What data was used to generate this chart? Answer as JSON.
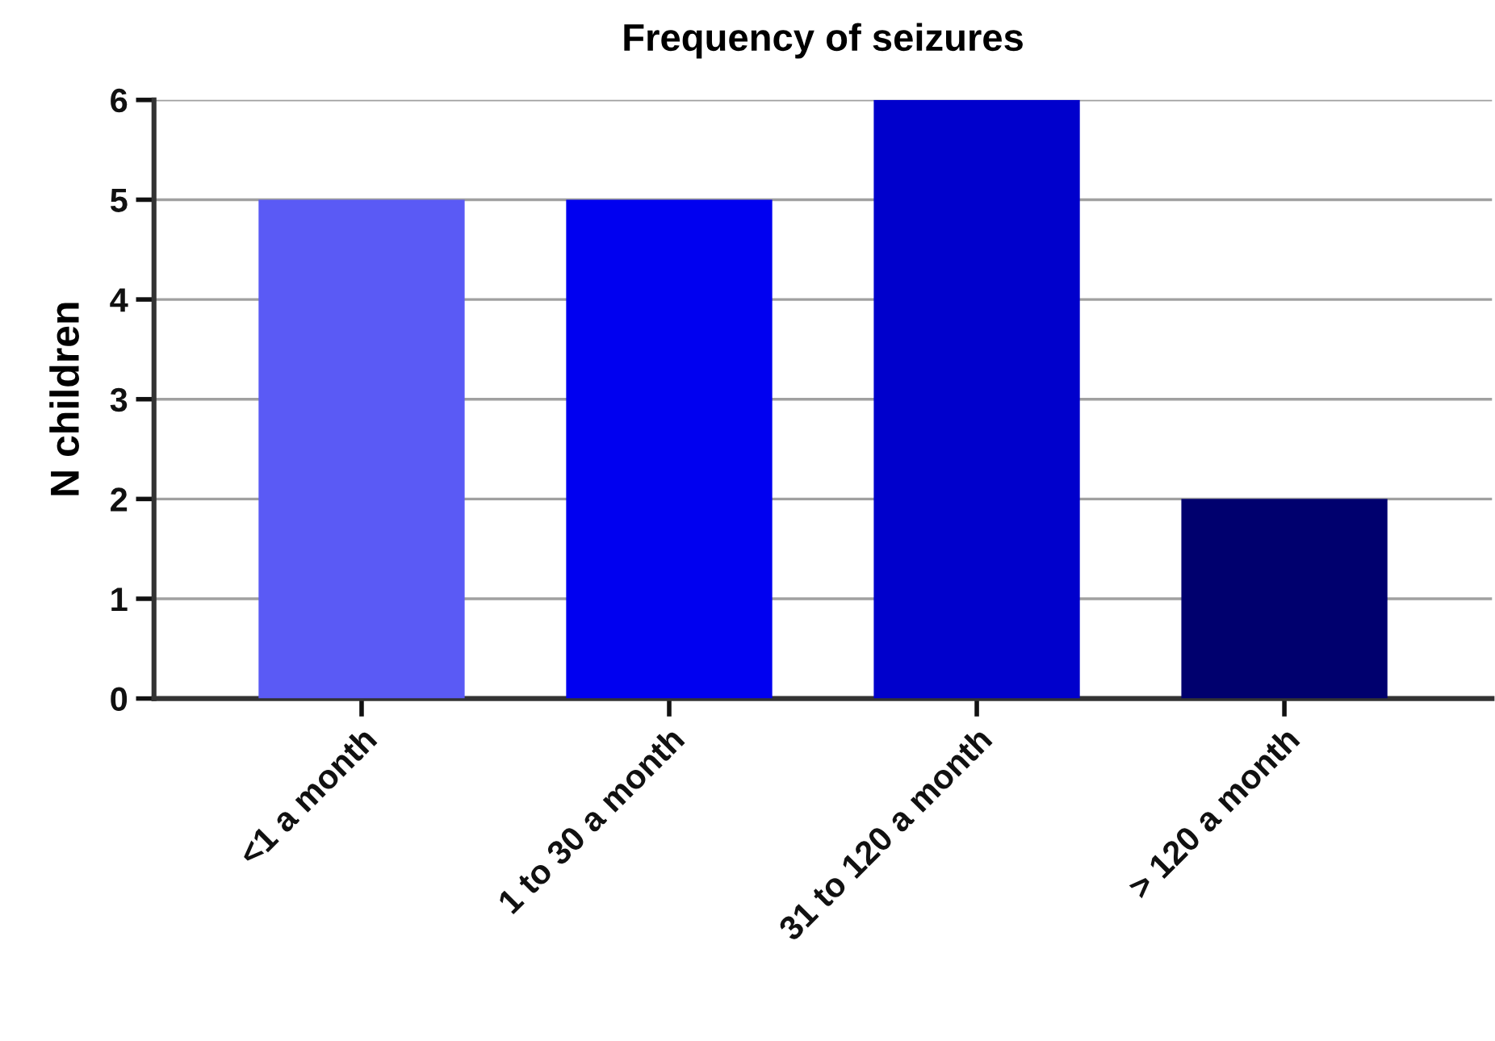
{
  "chart_data": {
    "type": "bar",
    "title": "Frequency of seizures",
    "ylabel": "N children",
    "categories": [
      "<1 a month",
      "1 to 30 a month",
      "31 to 120 a month",
      "> 120 a month"
    ],
    "values": [
      5,
      5,
      6,
      2
    ],
    "colors": [
      "#5a5af5",
      "#0000f0",
      "#0000cc",
      "#00006e"
    ],
    "ylim": [
      0,
      6
    ],
    "yticks": [
      0,
      1,
      2,
      3,
      4,
      5,
      6
    ],
    "grid": "y",
    "legend": false
  }
}
